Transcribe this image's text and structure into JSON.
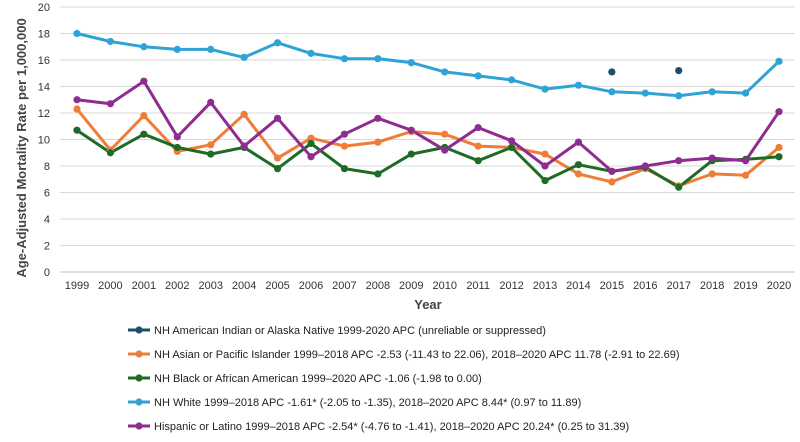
{
  "chart_data": {
    "type": "line",
    "title": "",
    "xlabel": "Year",
    "ylabel": "Age-Adjusted Mortality Rate per 1,000,000",
    "ylim": [
      0,
      20
    ],
    "ytick_step": 2,
    "grid": true,
    "legend_position": "bottom",
    "categories": [
      "1999",
      "2000",
      "2001",
      "2002",
      "2003",
      "2004",
      "2005",
      "2006",
      "2007",
      "2008",
      "2009",
      "2010",
      "2011",
      "2012",
      "2013",
      "2014",
      "2015",
      "2016",
      "2017",
      "2018",
      "2019",
      "2020"
    ],
    "series": [
      {
        "name": "NH American Indian or Alaska Native 1999-2020 APC (unreliable or suppressed)",
        "key": "aian",
        "color": "#1b4f6b",
        "values": [
          null,
          null,
          null,
          null,
          null,
          null,
          null,
          null,
          null,
          null,
          null,
          null,
          null,
          null,
          null,
          null,
          15.1,
          null,
          15.2,
          null,
          null,
          null
        ]
      },
      {
        "name": "NH Asian or Pacific Islander 1999–2018 APC -2.53 (-11.43 to 22.06), 2018–2020 APC 11.78 (-2.91 to 22.69)",
        "key": "api",
        "color": "#ef7d38",
        "values": [
          12.3,
          9.2,
          11.8,
          9.1,
          9.6,
          11.9,
          8.6,
          10.1,
          9.5,
          9.8,
          10.6,
          10.4,
          9.5,
          9.4,
          8.9,
          7.4,
          6.8,
          7.8,
          6.5,
          7.4,
          7.3,
          9.4
        ]
      },
      {
        "name": "NH Black or African American 1999–2020 APC -1.06 (-1.98 to 0.00)",
        "key": "black",
        "color": "#1f6b26",
        "values": [
          10.7,
          9.0,
          10.4,
          9.4,
          8.9,
          9.4,
          7.8,
          9.7,
          7.8,
          7.4,
          8.9,
          9.4,
          8.4,
          9.4,
          6.9,
          8.1,
          7.6,
          7.9,
          6.4,
          8.4,
          8.5,
          8.7
        ]
      },
      {
        "name": "NH White 1999–2018 APC -1.61* (-2.05 to -1.35), 2018–2020 APC 8.44* (0.97 to 11.89)",
        "key": "white",
        "color": "#2ea3d6",
        "values": [
          18.0,
          17.4,
          17.0,
          16.8,
          16.8,
          16.2,
          17.3,
          16.5,
          16.1,
          16.1,
          15.8,
          15.1,
          14.8,
          14.5,
          13.8,
          14.1,
          13.6,
          13.5,
          13.3,
          13.6,
          13.5,
          15.9
        ]
      },
      {
        "name": "Hispanic or Latino 1999–2018 APC -2.54* (-4.76 to -1.41), 2018–2020 APC 20.24* (0.25 to 31.39)",
        "key": "hispanic",
        "color": "#8e2c8f",
        "values": [
          13.0,
          12.7,
          14.4,
          10.2,
          12.8,
          9.5,
          11.6,
          8.7,
          10.4,
          11.6,
          10.7,
          9.2,
          10.9,
          9.9,
          8.0,
          9.8,
          7.6,
          8.0,
          8.4,
          8.6,
          8.4,
          12.1
        ]
      }
    ]
  }
}
